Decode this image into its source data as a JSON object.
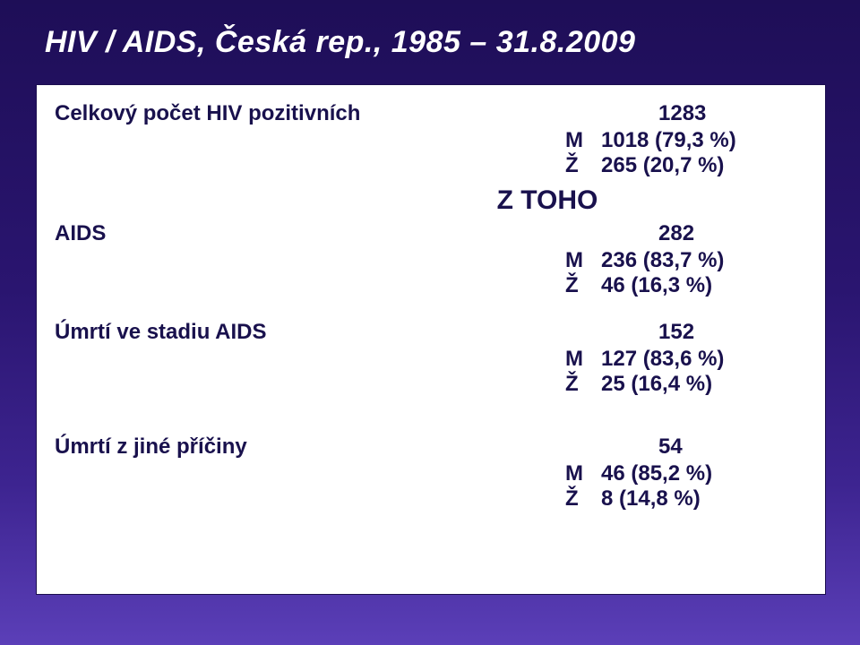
{
  "slide": {
    "title": "HIV / AIDS, Česká rep., 1985 – 31.8.2009",
    "background_gradient": [
      "#1e0e57",
      "#2a1570",
      "#3d2490",
      "#5b3fb8"
    ],
    "title_color": "#ffffff",
    "font_family": "Verdana",
    "title_fontsize": 34
  },
  "card": {
    "background_color": "#ffffff",
    "border_color": "#1b0d4f",
    "text_color": "#19114d",
    "label_fontsize": 24,
    "subheader_fontsize": 30,
    "subheader": "Z TOHO",
    "groups": [
      {
        "label": "Celkový počet HIV pozitivních",
        "total": "1283",
        "rows": [
          {
            "gender": "M",
            "value": "1018 (79,3 %)"
          },
          {
            "gender": "Ž",
            "value": "265 (20,7 %)"
          }
        ]
      },
      {
        "label": "AIDS",
        "total": "282",
        "rows": [
          {
            "gender": "M",
            "value": "236 (83,7 %)"
          },
          {
            "gender": "Ž",
            "value": "46 (16,3 %)"
          }
        ]
      },
      {
        "label": "Úmrtí ve stadiu AIDS",
        "total": "152",
        "rows": [
          {
            "gender": "M",
            "value": "127 (83,6 %)"
          },
          {
            "gender": "Ž",
            "value": "25 (16,4 %)"
          }
        ]
      },
      {
        "label": "Úmrtí z jiné příčiny",
        "total": "54",
        "rows": [
          {
            "gender": "M",
            "value": "46 (85,2 %)"
          },
          {
            "gender": "Ž",
            "value": "8 (14,8 %)"
          }
        ]
      }
    ]
  }
}
